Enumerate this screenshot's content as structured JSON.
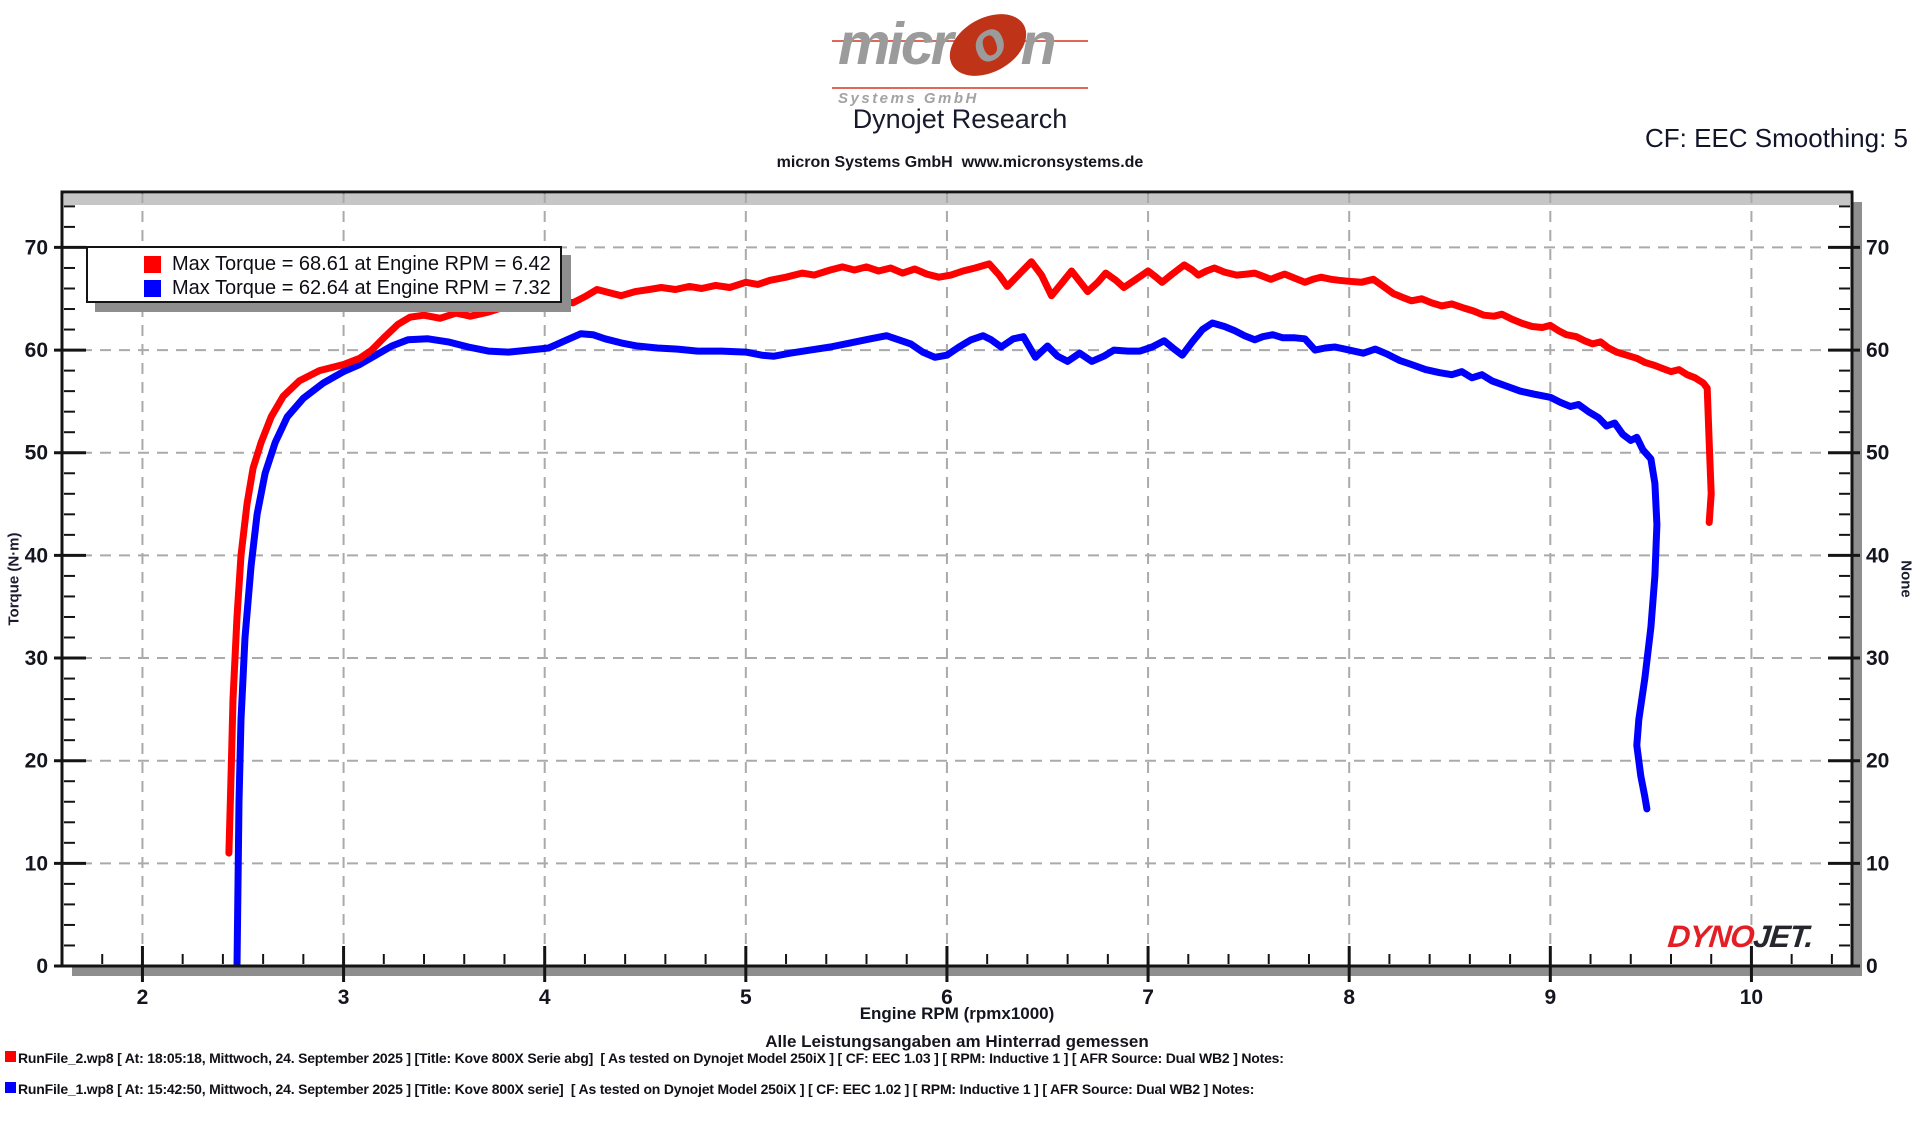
{
  "header": {
    "logo": {
      "part1": "micr",
      "part2": "o",
      "part3": "n",
      "subtitle": "Systems GmbH"
    },
    "title": "Dynojet Research",
    "subtitle": "micron Systems GmbH  www.micronsystems.de",
    "cf_label": "CF: EEC Smoothing: 5"
  },
  "watermark": {
    "part1": "DYNO",
    "part2": "JET."
  },
  "chart_data": {
    "type": "line",
    "title": "",
    "xlabel": "Engine RPM (rpmx1000)",
    "ylabel_left": "Torque (N·m)",
    "ylabel_right": "None",
    "grid": true,
    "legend_position": "top-left",
    "x_axis": {
      "min": 1.6,
      "max": 10.5,
      "major_ticks": [
        2,
        3,
        4,
        5,
        6,
        7,
        8,
        9,
        10
      ],
      "minor_step": 0.2
    },
    "y_axis": {
      "min": 0,
      "max": 75.4,
      "major_ticks": [
        0,
        10,
        20,
        30,
        40,
        50,
        60,
        70
      ],
      "minor_step": 2
    },
    "series": [
      {
        "name": "RunFile_2.wp8",
        "color": "#ff0000",
        "legend": "Max Torque = 68.61 at Engine RPM = 6.42",
        "max_torque": 68.61,
        "max_rpm": 6.42,
        "points": [
          [
            2.43,
            11
          ],
          [
            2.44,
            18
          ],
          [
            2.45,
            26
          ],
          [
            2.47,
            34
          ],
          [
            2.49,
            40
          ],
          [
            2.52,
            45
          ],
          [
            2.55,
            48.5
          ],
          [
            2.59,
            51
          ],
          [
            2.64,
            53.5
          ],
          [
            2.7,
            55.5
          ],
          [
            2.78,
            57
          ],
          [
            2.88,
            58
          ],
          [
            3.0,
            58.6
          ],
          [
            3.08,
            59.2
          ],
          [
            3.14,
            60
          ],
          [
            3.2,
            61.2
          ],
          [
            3.27,
            62.5
          ],
          [
            3.33,
            63.2
          ],
          [
            3.4,
            63.4
          ],
          [
            3.48,
            63.1
          ],
          [
            3.56,
            63.6
          ],
          [
            3.63,
            63.3
          ],
          [
            3.72,
            63.7
          ],
          [
            3.8,
            64.2
          ],
          [
            3.88,
            64.6
          ],
          [
            3.95,
            64.2
          ],
          [
            4.02,
            64.3
          ],
          [
            4.08,
            64.9
          ],
          [
            4.14,
            64.6
          ],
          [
            4.2,
            65.2
          ],
          [
            4.26,
            65.9
          ],
          [
            4.32,
            65.6
          ],
          [
            4.38,
            65.3
          ],
          [
            4.45,
            65.7
          ],
          [
            4.52,
            65.9
          ],
          [
            4.58,
            66.1
          ],
          [
            4.65,
            65.9
          ],
          [
            4.72,
            66.2
          ],
          [
            4.78,
            66.0
          ],
          [
            4.85,
            66.3
          ],
          [
            4.92,
            66.1
          ],
          [
            5.0,
            66.6
          ],
          [
            5.06,
            66.4
          ],
          [
            5.12,
            66.8
          ],
          [
            5.2,
            67.1
          ],
          [
            5.28,
            67.5
          ],
          [
            5.34,
            67.3
          ],
          [
            5.42,
            67.8
          ],
          [
            5.48,
            68.1
          ],
          [
            5.54,
            67.8
          ],
          [
            5.6,
            68.1
          ],
          [
            5.66,
            67.7
          ],
          [
            5.72,
            68.0
          ],
          [
            5.78,
            67.5
          ],
          [
            5.84,
            67.9
          ],
          [
            5.9,
            67.4
          ],
          [
            5.96,
            67.1
          ],
          [
            6.02,
            67.3
          ],
          [
            6.08,
            67.7
          ],
          [
            6.14,
            68.0
          ],
          [
            6.21,
            68.4
          ],
          [
            6.26,
            67.3
          ],
          [
            6.3,
            66.2
          ],
          [
            6.36,
            67.4
          ],
          [
            6.42,
            68.61
          ],
          [
            6.47,
            67.3
          ],
          [
            6.52,
            65.3
          ],
          [
            6.57,
            66.5
          ],
          [
            6.62,
            67.7
          ],
          [
            6.66,
            66.7
          ],
          [
            6.7,
            65.7
          ],
          [
            6.75,
            66.6
          ],
          [
            6.79,
            67.5
          ],
          [
            6.84,
            66.8
          ],
          [
            6.88,
            66.1
          ],
          [
            6.94,
            66.9
          ],
          [
            7.0,
            67.7
          ],
          [
            7.04,
            67.1
          ],
          [
            7.07,
            66.6
          ],
          [
            7.12,
            67.4
          ],
          [
            7.18,
            68.3
          ],
          [
            7.22,
            67.8
          ],
          [
            7.25,
            67.3
          ],
          [
            7.29,
            67.7
          ],
          [
            7.33,
            68.0
          ],
          [
            7.38,
            67.6
          ],
          [
            7.44,
            67.3
          ],
          [
            7.49,
            67.4
          ],
          [
            7.53,
            67.5
          ],
          [
            7.57,
            67.2
          ],
          [
            7.61,
            66.9
          ],
          [
            7.65,
            67.2
          ],
          [
            7.68,
            67.4
          ],
          [
            7.73,
            67.0
          ],
          [
            7.78,
            66.6
          ],
          [
            7.82,
            66.9
          ],
          [
            7.86,
            67.1
          ],
          [
            7.91,
            66.9
          ],
          [
            7.95,
            66.8
          ],
          [
            8.0,
            66.7
          ],
          [
            8.06,
            66.6
          ],
          [
            8.12,
            66.9
          ],
          [
            8.17,
            66.2
          ],
          [
            8.22,
            65.5
          ],
          [
            8.27,
            65.1
          ],
          [
            8.31,
            64.8
          ],
          [
            8.36,
            65.0
          ],
          [
            8.41,
            64.6
          ],
          [
            8.46,
            64.3
          ],
          [
            8.51,
            64.5
          ],
          [
            8.57,
            64.1
          ],
          [
            8.62,
            63.8
          ],
          [
            8.67,
            63.4
          ],
          [
            8.72,
            63.3
          ],
          [
            8.76,
            63.5
          ],
          [
            8.81,
            63.0
          ],
          [
            8.86,
            62.6
          ],
          [
            8.91,
            62.3
          ],
          [
            8.96,
            62.2
          ],
          [
            9.0,
            62.4
          ],
          [
            9.04,
            61.9
          ],
          [
            9.08,
            61.5
          ],
          [
            9.13,
            61.3
          ],
          [
            9.17,
            60.9
          ],
          [
            9.21,
            60.6
          ],
          [
            9.25,
            60.8
          ],
          [
            9.29,
            60.2
          ],
          [
            9.33,
            59.8
          ],
          [
            9.38,
            59.5
          ],
          [
            9.43,
            59.2
          ],
          [
            9.47,
            58.8
          ],
          [
            9.52,
            58.5
          ],
          [
            9.56,
            58.2
          ],
          [
            9.6,
            57.9
          ],
          [
            9.64,
            58.1
          ],
          [
            9.68,
            57.6
          ],
          [
            9.72,
            57.3
          ],
          [
            9.76,
            56.8
          ],
          [
            9.78,
            56.3
          ],
          [
            9.79,
            51.0
          ],
          [
            9.8,
            46.0
          ],
          [
            9.79,
            43.2
          ]
        ]
      },
      {
        "name": "RunFile_1.wp8",
        "color": "#0000ff",
        "legend": "Max Torque = 62.64 at Engine RPM = 7.32",
        "max_torque": 62.64,
        "max_rpm": 7.32,
        "points": [
          [
            2.47,
            0
          ],
          [
            2.475,
            8
          ],
          [
            2.48,
            16
          ],
          [
            2.49,
            24
          ],
          [
            2.51,
            32
          ],
          [
            2.54,
            39
          ],
          [
            2.57,
            44
          ],
          [
            2.61,
            48
          ],
          [
            2.66,
            51
          ],
          [
            2.72,
            53.5
          ],
          [
            2.8,
            55.3
          ],
          [
            2.9,
            56.8
          ],
          [
            3.0,
            57.9
          ],
          [
            3.08,
            58.6
          ],
          [
            3.16,
            59.5
          ],
          [
            3.24,
            60.4
          ],
          [
            3.32,
            61.0
          ],
          [
            3.42,
            61.1
          ],
          [
            3.52,
            60.8
          ],
          [
            3.62,
            60.3
          ],
          [
            3.72,
            59.9
          ],
          [
            3.82,
            59.8
          ],
          [
            3.92,
            60.0
          ],
          [
            4.02,
            60.2
          ],
          [
            4.1,
            60.9
          ],
          [
            4.18,
            61.6
          ],
          [
            4.24,
            61.5
          ],
          [
            4.3,
            61.1
          ],
          [
            4.38,
            60.7
          ],
          [
            4.46,
            60.4
          ],
          [
            4.56,
            60.2
          ],
          [
            4.66,
            60.1
          ],
          [
            4.76,
            59.9
          ],
          [
            4.88,
            59.9
          ],
          [
            5.0,
            59.8
          ],
          [
            5.08,
            59.5
          ],
          [
            5.14,
            59.4
          ],
          [
            5.22,
            59.7
          ],
          [
            5.32,
            60.0
          ],
          [
            5.42,
            60.3
          ],
          [
            5.52,
            60.7
          ],
          [
            5.62,
            61.1
          ],
          [
            5.7,
            61.4
          ],
          [
            5.76,
            61.0
          ],
          [
            5.82,
            60.6
          ],
          [
            5.88,
            59.8
          ],
          [
            5.94,
            59.3
          ],
          [
            6.0,
            59.5
          ],
          [
            6.06,
            60.3
          ],
          [
            6.12,
            61.0
          ],
          [
            6.18,
            61.4
          ],
          [
            6.22,
            61.0
          ],
          [
            6.27,
            60.3
          ],
          [
            6.33,
            61.1
          ],
          [
            6.38,
            61.3
          ],
          [
            6.44,
            59.3
          ],
          [
            6.5,
            60.4
          ],
          [
            6.55,
            59.4
          ],
          [
            6.6,
            58.9
          ],
          [
            6.66,
            59.7
          ],
          [
            6.72,
            58.9
          ],
          [
            6.78,
            59.4
          ],
          [
            6.83,
            60.0
          ],
          [
            6.9,
            59.9
          ],
          [
            6.96,
            59.9
          ],
          [
            7.02,
            60.3
          ],
          [
            7.08,
            60.9
          ],
          [
            7.13,
            60.1
          ],
          [
            7.17,
            59.5
          ],
          [
            7.22,
            60.8
          ],
          [
            7.27,
            62.0
          ],
          [
            7.32,
            62.64
          ],
          [
            7.38,
            62.3
          ],
          [
            7.43,
            61.9
          ],
          [
            7.48,
            61.4
          ],
          [
            7.53,
            61.0
          ],
          [
            7.57,
            61.3
          ],
          [
            7.62,
            61.5
          ],
          [
            7.67,
            61.2
          ],
          [
            7.73,
            61.2
          ],
          [
            7.78,
            61.1
          ],
          [
            7.83,
            60.0
          ],
          [
            7.88,
            60.2
          ],
          [
            7.93,
            60.3
          ],
          [
            8.0,
            60.0
          ],
          [
            8.07,
            59.7
          ],
          [
            8.13,
            60.1
          ],
          [
            8.19,
            59.6
          ],
          [
            8.25,
            59.0
          ],
          [
            8.31,
            58.6
          ],
          [
            8.38,
            58.1
          ],
          [
            8.45,
            57.8
          ],
          [
            8.51,
            57.6
          ],
          [
            8.56,
            57.9
          ],
          [
            8.61,
            57.3
          ],
          [
            8.66,
            57.6
          ],
          [
            8.71,
            57.0
          ],
          [
            8.78,
            56.5
          ],
          [
            8.85,
            56.0
          ],
          [
            8.92,
            55.7
          ],
          [
            9.0,
            55.4
          ],
          [
            9.05,
            54.9
          ],
          [
            9.1,
            54.5
          ],
          [
            9.14,
            54.7
          ],
          [
            9.19,
            54.0
          ],
          [
            9.24,
            53.4
          ],
          [
            9.28,
            52.6
          ],
          [
            9.32,
            52.9
          ],
          [
            9.36,
            51.8
          ],
          [
            9.4,
            51.2
          ],
          [
            9.43,
            51.5
          ],
          [
            9.46,
            50.3
          ],
          [
            9.5,
            49.4
          ],
          [
            9.52,
            47.0
          ],
          [
            9.53,
            43.0
          ],
          [
            9.52,
            38.0
          ],
          [
            9.5,
            33.0
          ],
          [
            9.47,
            28.0
          ],
          [
            9.44,
            24.0
          ],
          [
            9.43,
            21.5
          ],
          [
            9.45,
            18.5
          ],
          [
            9.47,
            16.5
          ],
          [
            9.48,
            15.3
          ]
        ]
      }
    ]
  },
  "footer": {
    "note": "Alle Leistungsangaben am Hinterrad gemessen",
    "runs": [
      {
        "color": "#ff0000",
        "text": "RunFile_2.wp8 [ At: 18:05:18, Mittwoch, 24. September 2025 ] [Title: Kove 800X Serie abg]  [ As tested on Dynojet Model 250iX ] [ CF: EEC 1.03 ] [ RPM: Inductive 1 ] [ AFR Source: Dual WB2 ] Notes:"
      },
      {
        "color": "#0000ff",
        "text": "RunFile_1.wp8 [ At: 15:42:50, Mittwoch, 24. September 2025 ] [Title: Kove 800X serie]  [ As tested on Dynojet Model 250iX ] [ CF: EEC 1.02 ] [ RPM: Inductive 1 ] [ AFR Source: Dual WB2 ] Notes:"
      }
    ]
  }
}
